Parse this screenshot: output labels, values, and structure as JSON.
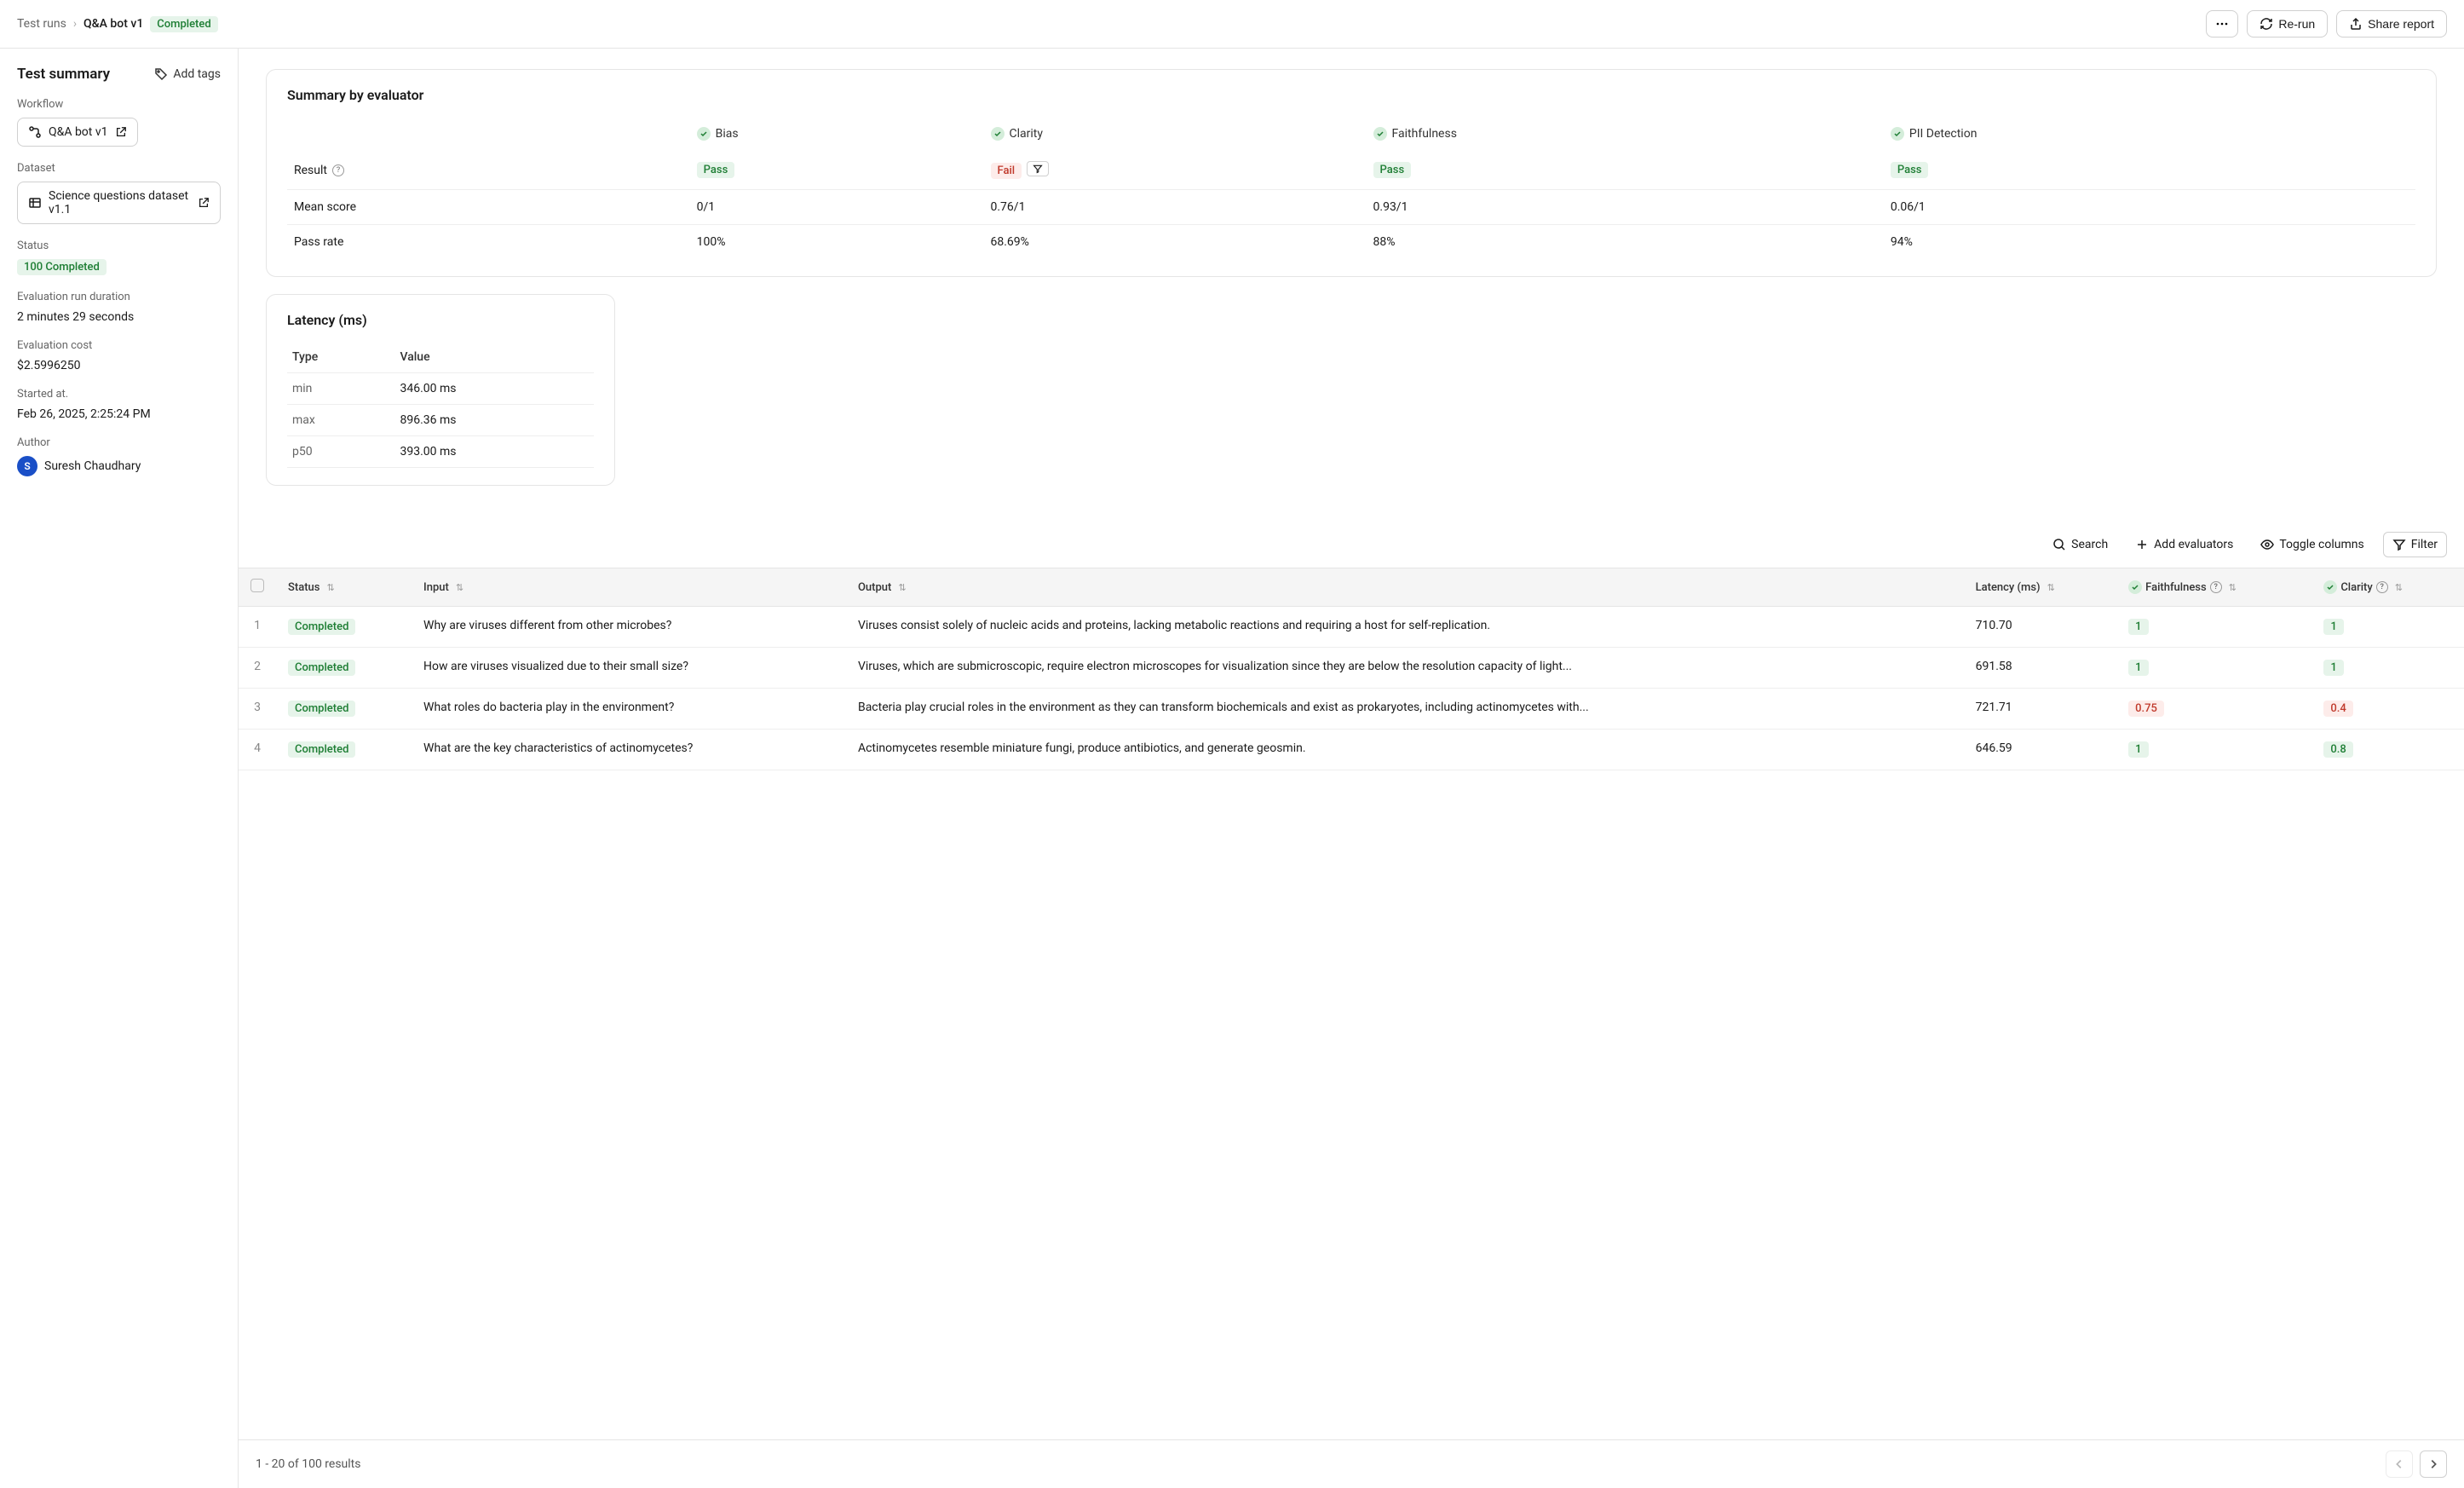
{
  "breadcrumb": {
    "root": "Test runs",
    "current": "Q&A bot v1",
    "status": "Completed"
  },
  "header": {
    "rerun": "Re-run",
    "share": "Share report"
  },
  "sidebar": {
    "title": "Test summary",
    "add_tags": "Add tags",
    "workflow_label": "Workflow",
    "workflow_value": "Q&A bot v1",
    "dataset_label": "Dataset",
    "dataset_value": "Science questions dataset v1.1",
    "status_label": "Status",
    "status_value": "100 Completed",
    "duration_label": "Evaluation run duration",
    "duration_value": "2 minutes 29 seconds",
    "cost_label": "Evaluation cost",
    "cost_value": "$2.5996250",
    "started_label": "Started at.",
    "started_value": "Feb 26, 2025, 2:25:24 PM",
    "author_label": "Author",
    "author_initial": "S",
    "author_name": "Suresh Chaudhary"
  },
  "summary": {
    "title": "Summary by evaluator",
    "row_labels": {
      "result": "Result",
      "mean": "Mean score",
      "pass_rate": "Pass rate"
    },
    "evaluators": [
      {
        "name": "Bias",
        "result": "Pass",
        "result_type": "green",
        "mean": "0/1",
        "pass_rate": "100%"
      },
      {
        "name": "Clarity",
        "result": "Fail",
        "result_type": "red",
        "mean": "0.76/1",
        "pass_rate": "68.69%",
        "show_filter": true
      },
      {
        "name": "Faithfulness",
        "result": "Pass",
        "result_type": "green",
        "mean": "0.93/1",
        "pass_rate": "88%"
      },
      {
        "name": "PII Detection",
        "result": "Pass",
        "result_type": "green",
        "mean": "0.06/1",
        "pass_rate": "94%"
      }
    ]
  },
  "latency": {
    "title": "Latency (ms)",
    "type_label": "Type",
    "value_label": "Value",
    "rows": [
      {
        "type": "min",
        "value": "346.00 ms"
      },
      {
        "type": "max",
        "value": "896.36 ms"
      },
      {
        "type": "p50",
        "value": "393.00 ms"
      }
    ]
  },
  "toolbar": {
    "search": "Search",
    "add_eval": "Add evaluators",
    "toggle_cols": "Toggle columns",
    "filter": "Filter"
  },
  "table": {
    "cols": {
      "status": "Status",
      "input": "Input",
      "output": "Output",
      "latency": "Latency (ms)",
      "faithfulness": "Faithfulness",
      "clarity": "Clarity"
    },
    "rows": [
      {
        "n": "1",
        "status": "Completed",
        "input": "Why are viruses different from other microbes?",
        "output": "Viruses consist solely of nucleic acids and proteins, lacking metabolic reactions and requiring a host for self-replication.",
        "latency": "710.70",
        "faithfulness": "1",
        "faithfulness_type": "green",
        "clarity": "1",
        "clarity_type": "green"
      },
      {
        "n": "2",
        "status": "Completed",
        "input": "How are viruses visualized due to their small size?",
        "output": "Viruses, which are submicroscopic, require electron microscopes for visualization since they are below the resolution capacity of light...",
        "latency": "691.58",
        "faithfulness": "1",
        "faithfulness_type": "green",
        "clarity": "1",
        "clarity_type": "green"
      },
      {
        "n": "3",
        "status": "Completed",
        "input": "What roles do bacteria play in the environment?",
        "output": "Bacteria play crucial roles in the environment as they can transform biochemicals and exist as prokaryotes, including actinomycetes with...",
        "latency": "721.71",
        "faithfulness": "0.75",
        "faithfulness_type": "red",
        "clarity": "0.4",
        "clarity_type": "red"
      },
      {
        "n": "4",
        "status": "Completed",
        "input": "What are the key characteristics of actinomycetes?",
        "output": "Actinomycetes resemble miniature fungi, produce antibiotics, and generate geosmin.",
        "latency": "646.59",
        "faithfulness": "1",
        "faithfulness_type": "green",
        "clarity": "0.8",
        "clarity_type": "green"
      }
    ]
  },
  "footer": {
    "range": "1 - 20 of 100 results"
  }
}
